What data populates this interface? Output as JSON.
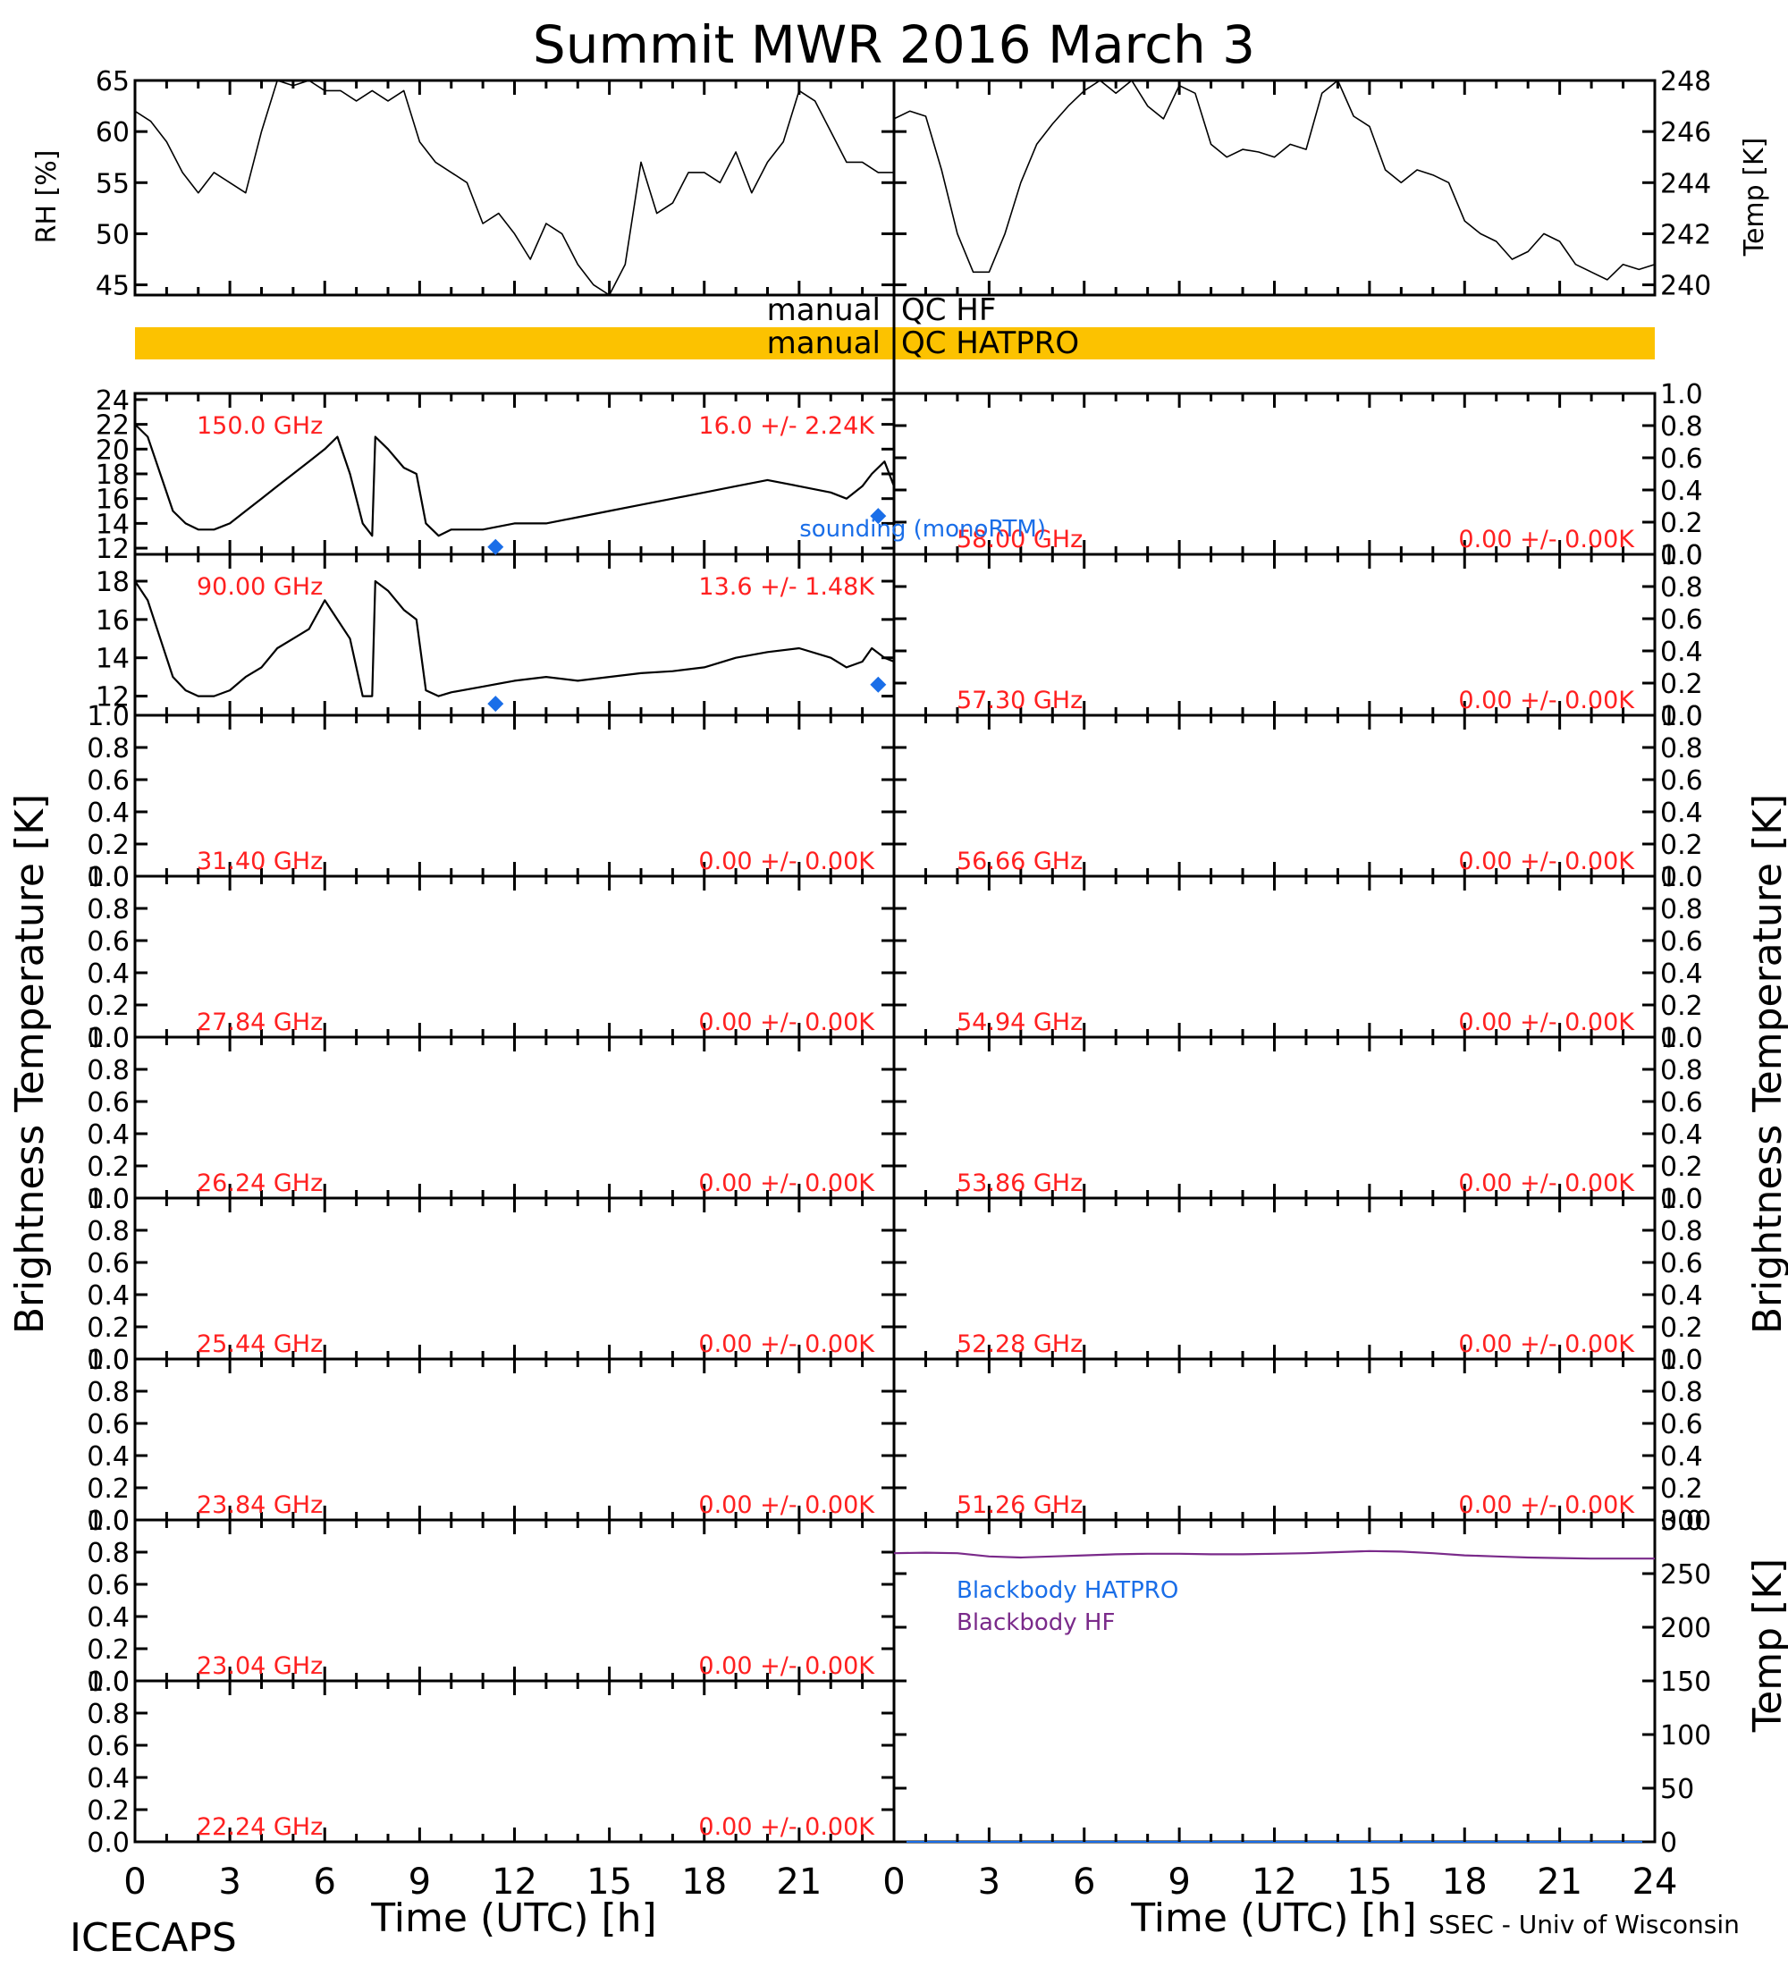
{
  "title": "Summit MWR 2016 March  3",
  "footer": {
    "left": "ICECAPS",
    "right": "SSEC - Univ of Wisconsin"
  },
  "colors": {
    "label_red": "#ff2020",
    "sounding_blue": "#1a6ee8",
    "qc_bar": "#fcc200",
    "blackbody_hatpro": "#1a6ee8",
    "blackbody_hf": "#7a2a8a",
    "line": "#000000"
  },
  "qc": {
    "hf_label_left": "manual",
    "hf_label_right": "QC  HF",
    "hatpro_label_left": "manual",
    "hatpro_label_right": "QC  HATPRO",
    "hf_flag": "none",
    "hatpro_flag": "manual (full day)"
  },
  "axis_labels": {
    "rh": "RH [%]",
    "temp_top": "Temp [K]",
    "bt_left": "Brightness Temperature [K]",
    "bt_right": "Brightness Temperature [K]",
    "temp_bb": "Temp [K]",
    "time_left": "Time (UTC) [h]",
    "time_right": "Time (UTC) [h]"
  },
  "legend": {
    "sounding": "sounding (monoRTM)",
    "bb_hatpro": "Blackbody HATPRO",
    "bb_hf": "Blackbody HF"
  },
  "chart_data": {
    "type": "line",
    "x_unit": "hours UTC",
    "xlim": [
      0,
      24
    ],
    "x_ticks": [
      "0",
      "3",
      "6",
      "9",
      "12",
      "15",
      "18",
      "21"
    ],
    "x_ticks_right": [
      "0",
      "3",
      "6",
      "9",
      "12",
      "15",
      "18",
      "21",
      "24"
    ],
    "rh": {
      "ylim": [
        44,
        65
      ],
      "yticks": [
        "45",
        "50",
        "55",
        "60",
        "65"
      ],
      "x": [
        0,
        0.5,
        1,
        1.5,
        2,
        2.5,
        3,
        3.5,
        4,
        4.5,
        5,
        5.5,
        6,
        6.5,
        7,
        7.5,
        8,
        8.5,
        9,
        9.5,
        10,
        10.5,
        11,
        11.5,
        12,
        12.5,
        13,
        13.5,
        14,
        14.5,
        15,
        15.5,
        16,
        16.5,
        17,
        17.5,
        18,
        18.5,
        19,
        19.5,
        20,
        20.5,
        21,
        21.5,
        22,
        22.5,
        23,
        23.5,
        24
      ],
      "y": [
        62,
        61,
        59,
        56,
        54,
        56,
        55,
        54,
        60,
        65,
        64.5,
        65,
        64,
        64,
        63,
        64,
        63,
        64,
        59,
        57,
        56,
        55,
        51,
        52,
        50,
        47.5,
        51,
        50,
        47,
        45,
        44,
        47,
        57,
        52,
        53,
        56,
        56,
        55,
        58,
        54,
        57,
        59,
        64,
        63,
        60,
        57,
        57,
        56,
        56
      ]
    },
    "temp": {
      "ylim": [
        239.6,
        248
      ],
      "yticks": [
        "240",
        "242",
        "244",
        "246",
        "248"
      ],
      "x": [
        0,
        0.5,
        1,
        1.5,
        2,
        2.5,
        3,
        3.5,
        4,
        4.5,
        5,
        5.5,
        6,
        6.5,
        7,
        7.5,
        8,
        8.5,
        9,
        9.5,
        10,
        10.5,
        11,
        11.5,
        12,
        12.5,
        13,
        13.5,
        14,
        14.5,
        15,
        15.5,
        16,
        16.5,
        17,
        17.5,
        18,
        18.5,
        19,
        19.5,
        20,
        20.5,
        21,
        21.5,
        22,
        22.5,
        23,
        23.5,
        24
      ],
      "y": [
        246.5,
        246.8,
        246.6,
        244.5,
        242,
        240.5,
        240.5,
        242,
        244,
        245.5,
        246.3,
        247,
        247.6,
        248,
        247.5,
        248,
        247,
        246.5,
        247.8,
        247.5,
        245.5,
        245,
        245.3,
        245.2,
        245,
        245.5,
        245.3,
        247.5,
        248,
        246.6,
        246.2,
        244.5,
        244,
        244.5,
        244.3,
        244,
        242.5,
        242,
        241.7,
        241,
        241.3,
        242,
        241.7,
        240.8,
        240.5,
        240.2,
        240.8,
        240.6,
        240.8
      ]
    },
    "channels_left": [
      {
        "freq_label": "150.0 GHz",
        "stats_label": "16.0 +/-  2.24K",
        "ylim": [
          11.5,
          24.5
        ],
        "yticks": [
          "12",
          "14",
          "16",
          "18",
          "20",
          "22",
          "24"
        ],
        "x": [
          0,
          0.4,
          0.8,
          1.2,
          1.6,
          2,
          2.5,
          3,
          3.5,
          4,
          4.5,
          5,
          5.5,
          6,
          6.4,
          6.8,
          7.2,
          7.5,
          7.6,
          8,
          8.5,
          8.9,
          9.2,
          9.6,
          10,
          11,
          12,
          13,
          14,
          15,
          16,
          17,
          18,
          19,
          20,
          21,
          22,
          22.5,
          23,
          23.3,
          23.7,
          24
        ],
        "y": [
          22,
          21,
          18,
          15,
          14,
          13.5,
          13.5,
          14,
          15,
          16,
          17,
          18,
          19,
          20,
          21,
          18,
          14,
          13,
          21,
          20,
          18.5,
          18,
          14,
          13,
          13.5,
          13.5,
          14,
          14,
          14.5,
          15,
          15.5,
          16,
          16.5,
          17,
          17.5,
          17,
          16.5,
          16,
          17,
          18,
          19,
          17
        ]
      },
      {
        "freq_label": "90.00 GHz",
        "stats_label": "13.6 +/-  1.48K",
        "ylim": [
          11,
          19.4
        ],
        "yticks": [
          "12",
          "14",
          "16",
          "18"
        ],
        "x": [
          0,
          0.4,
          0.8,
          1.2,
          1.6,
          2,
          2.5,
          3,
          3.5,
          4,
          4.5,
          5,
          5.5,
          6,
          6.4,
          6.8,
          7.2,
          7.5,
          7.6,
          8,
          8.5,
          8.9,
          9.2,
          9.6,
          10,
          11,
          12,
          13,
          14,
          15,
          16,
          17,
          18,
          19,
          20,
          21,
          22,
          22.5,
          23,
          23.3,
          23.7,
          24
        ],
        "y": [
          18,
          17,
          15,
          13,
          12.3,
          12,
          12,
          12.3,
          13,
          13.5,
          14.5,
          15,
          15.5,
          17,
          16,
          15,
          12,
          12,
          18,
          17.5,
          16.5,
          16,
          12.3,
          12,
          12.2,
          12.5,
          12.8,
          13,
          12.8,
          13,
          13.2,
          13.3,
          13.5,
          14,
          14.3,
          14.5,
          14,
          13.5,
          13.8,
          14.5,
          14,
          13.8
        ]
      },
      {
        "freq_label": "31.40 GHz",
        "stats_label": "0.00 +/-  0.00K"
      },
      {
        "freq_label": "27.84 GHz",
        "stats_label": "0.00 +/-  0.00K"
      },
      {
        "freq_label": "26.24 GHz",
        "stats_label": "0.00 +/-  0.00K"
      },
      {
        "freq_label": "25.44 GHz",
        "stats_label": "0.00 +/-  0.00K"
      },
      {
        "freq_label": "23.84 GHz",
        "stats_label": "0.00 +/-  0.00K"
      },
      {
        "freq_label": "23.04 GHz",
        "stats_label": "0.00 +/-  0.00K"
      },
      {
        "freq_label": "22.24 GHz",
        "stats_label": "0.00 +/-  0.00K"
      }
    ],
    "channels_right": [
      {
        "freq_label": "58.00 GHz",
        "stats_label": "0.00 +/-  0.00K"
      },
      {
        "freq_label": "57.30 GHz",
        "stats_label": "0.00 +/-  0.00K"
      },
      {
        "freq_label": "56.66 GHz",
        "stats_label": "0.00 +/-  0.00K"
      },
      {
        "freq_label": "54.94 GHz",
        "stats_label": "0.00 +/-  0.00K"
      },
      {
        "freq_label": "53.86 GHz",
        "stats_label": "0.00 +/-  0.00K"
      },
      {
        "freq_label": "52.28 GHz",
        "stats_label": "0.00 +/-  0.00K"
      },
      {
        "freq_label": "51.26 GHz",
        "stats_label": "0.00 +/-  0.00K"
      }
    ],
    "empty_yticks": [
      "0.0",
      "0.2",
      "0.4",
      "0.6",
      "0.8",
      "1.0"
    ],
    "sounding_150": {
      "x": [
        11.4,
        23.5
      ],
      "y": [
        12.1,
        14.6
      ]
    },
    "sounding_90": {
      "x": [
        11.4,
        23.5
      ],
      "y": [
        11.6,
        12.6
      ]
    },
    "blackbody": {
      "ylim": [
        0,
        300
      ],
      "yticks": [
        "0",
        "50",
        "100",
        "150",
        "200",
        "250",
        "300"
      ],
      "hf": {
        "x": [
          0,
          1,
          2,
          3,
          4,
          5,
          6,
          7,
          8,
          9,
          10,
          11,
          12,
          13,
          14,
          15,
          16,
          17,
          18,
          19,
          20,
          21,
          22,
          23,
          24
        ],
        "y": [
          269,
          269.5,
          269,
          266,
          265,
          266,
          267,
          268,
          268.5,
          268.5,
          268,
          268,
          268.5,
          269,
          270,
          271,
          270.5,
          269,
          267,
          266,
          265,
          264.5,
          264,
          264,
          264
        ]
      },
      "hatpro": {
        "x": [
          0,
          24
        ],
        "y": [
          0,
          0
        ]
      }
    }
  }
}
